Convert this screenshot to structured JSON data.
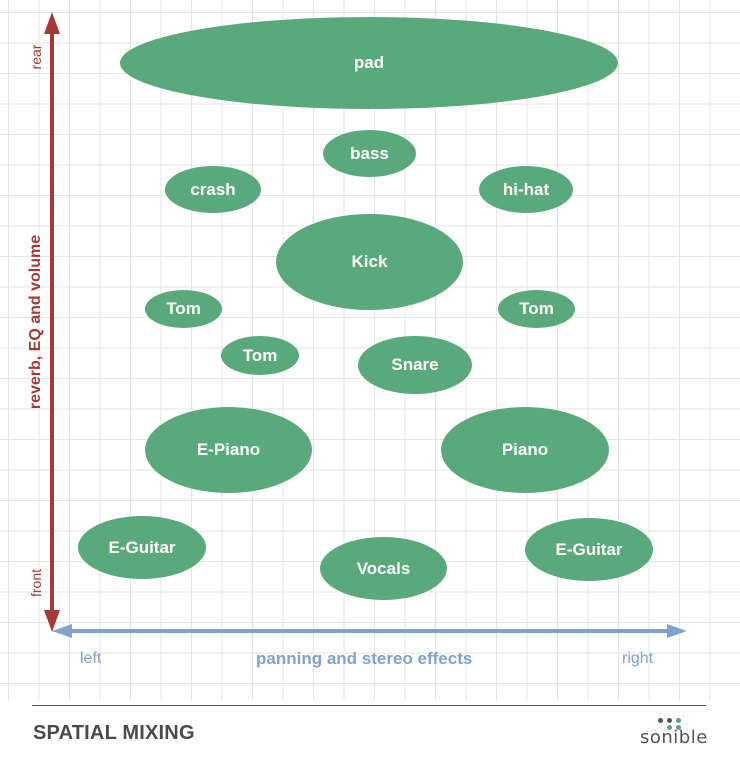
{
  "axes": {
    "y_title": "reverb, EQ and volume",
    "y_top": "rear",
    "y_bottom": "front",
    "x_title": "panning and stereo effects",
    "x_left": "left",
    "x_right": "right",
    "y_color": "#a33a36",
    "x_color": "#7ea3cf"
  },
  "instruments": [
    {
      "label": "pad"
    },
    {
      "label": "bass"
    },
    {
      "label": "crash"
    },
    {
      "label": "hi-hat"
    },
    {
      "label": "Kick"
    },
    {
      "label": "Tom"
    },
    {
      "label": "Tom"
    },
    {
      "label": "Tom"
    },
    {
      "label": "Snare"
    },
    {
      "label": "E-Piano"
    },
    {
      "label": "Piano"
    },
    {
      "label": "E-Guitar"
    },
    {
      "label": "Vocals"
    },
    {
      "label": "E-Guitar"
    }
  ],
  "colors": {
    "blob": "#5aa97c"
  },
  "footer": {
    "title": "SPATIAL MIXING",
    "brand": "sonible"
  }
}
